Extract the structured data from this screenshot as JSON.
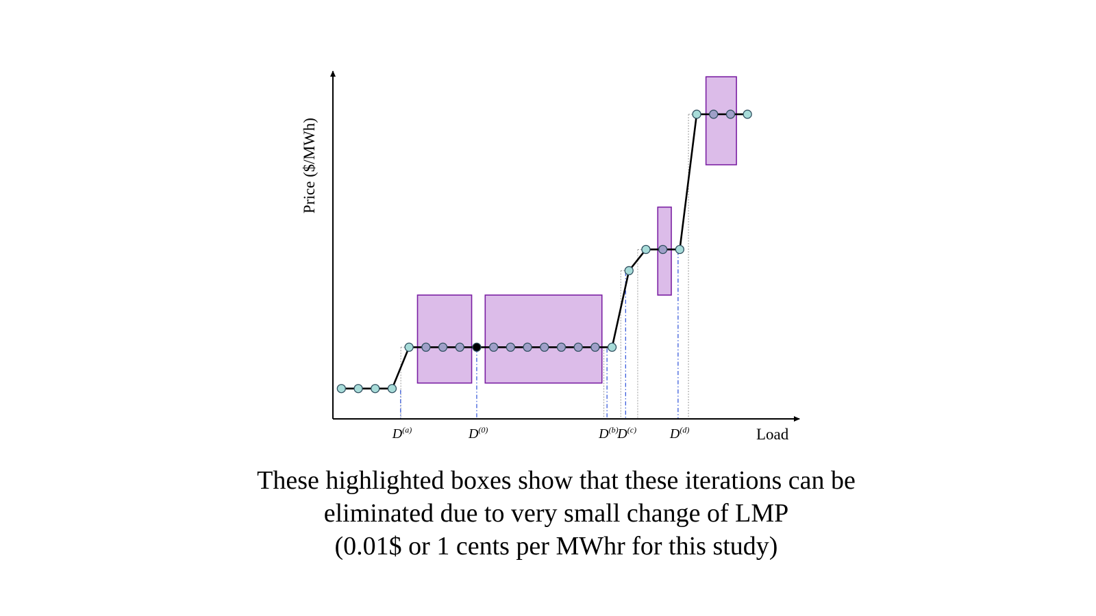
{
  "chart_data": {
    "type": "line",
    "title": "",
    "xlabel": "Load",
    "ylabel": "Price ($/MWh)",
    "x_ticks": [
      {
        "base": "D",
        "sup": "(a)",
        "x": 4.0
      },
      {
        "base": "D",
        "sup": "(0)",
        "x": 8.5
      },
      {
        "base": "D",
        "sup": "(b)",
        "x": 16.2
      },
      {
        "base": "D",
        "sup": "(c)",
        "x": 17.3
      },
      {
        "base": "D",
        "sup": "(d)",
        "x": 20.4
      }
    ],
    "xlim": [
      0,
      28
    ],
    "ylim": [
      0,
      10
    ],
    "grid": false,
    "series": [
      {
        "points": [
          {
            "x": 0.5,
            "y": 0.93,
            "style": "normal"
          },
          {
            "x": 1.5,
            "y": 0.93,
            "style": "normal"
          },
          {
            "x": 2.5,
            "y": 0.93,
            "style": "normal"
          },
          {
            "x": 3.5,
            "y": 0.93,
            "style": "normal"
          },
          {
            "x": 4.5,
            "y": 2.2,
            "style": "normal"
          },
          {
            "x": 5.5,
            "y": 2.2,
            "style": "eliminated"
          },
          {
            "x": 6.5,
            "y": 2.2,
            "style": "eliminated"
          },
          {
            "x": 7.5,
            "y": 2.2,
            "style": "eliminated"
          },
          {
            "x": 8.5,
            "y": 2.2,
            "style": "current"
          },
          {
            "x": 9.5,
            "y": 2.2,
            "style": "eliminated"
          },
          {
            "x": 10.5,
            "y": 2.2,
            "style": "eliminated"
          },
          {
            "x": 11.5,
            "y": 2.2,
            "style": "eliminated"
          },
          {
            "x": 12.5,
            "y": 2.2,
            "style": "eliminated"
          },
          {
            "x": 13.5,
            "y": 2.2,
            "style": "eliminated"
          },
          {
            "x": 14.5,
            "y": 2.2,
            "style": "eliminated"
          },
          {
            "x": 15.5,
            "y": 2.2,
            "style": "eliminated"
          },
          {
            "x": 16.5,
            "y": 2.2,
            "style": "normal"
          },
          {
            "x": 17.5,
            "y": 4.55,
            "style": "normal"
          },
          {
            "x": 18.5,
            "y": 5.2,
            "style": "normal"
          },
          {
            "x": 19.5,
            "y": 5.2,
            "style": "eliminated"
          },
          {
            "x": 20.5,
            "y": 5.2,
            "style": "normal"
          },
          {
            "x": 21.5,
            "y": 9.35,
            "style": "normal"
          },
          {
            "x": 22.5,
            "y": 9.35,
            "style": "eliminated"
          },
          {
            "x": 23.5,
            "y": 9.35,
            "style": "eliminated"
          },
          {
            "x": 24.5,
            "y": 9.35,
            "style": "normal"
          }
        ]
      }
    ],
    "highlight_boxes": [
      {
        "x0": 5.0,
        "x1": 8.2,
        "y0": 1.1,
        "y1": 3.8
      },
      {
        "x0": 9.0,
        "x1": 15.9,
        "y0": 1.1,
        "y1": 3.8
      },
      {
        "x0": 19.2,
        "x1": 20.0,
        "y0": 3.8,
        "y1": 6.5
      },
      {
        "x0": 22.05,
        "x1": 23.85,
        "y0": 7.8,
        "y1": 10.5
      }
    ],
    "colors": {
      "curve": "#000000",
      "marker_normal": "#a8dcd9",
      "marker_eliminated": "#9f9fc8",
      "marker_current": "#000000",
      "marker_edge": "#2f4f5f",
      "box_fill": "#dcbce9",
      "box_edge": "#7a1fa2",
      "guide_blue": "#2a4fd8",
      "guide_gray": "#999999"
    }
  },
  "caption": {
    "line1": "These highlighted boxes show that these iterations can be",
    "line2": "eliminated due to very small change of LMP",
    "line3": "(0.01$ or 1 cents per MWhr for this study)"
  }
}
